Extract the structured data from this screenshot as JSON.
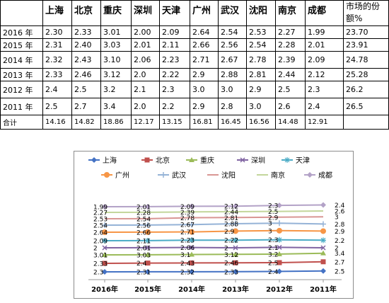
{
  "table": {
    "headers": [
      "",
      "上海",
      "北京",
      "重庆",
      "深圳",
      "天津",
      "广州",
      "武汉",
      "沈阳",
      "南京",
      "成都",
      "市场的份额%"
    ],
    "rows": [
      [
        "2016 年",
        "2.30",
        "2.33",
        "3.01",
        "2.00",
        "2.09",
        "2.64",
        "2.54",
        "2.53",
        "2.27",
        "1.99",
        "23.70"
      ],
      [
        "2015 年",
        "2.31",
        "2.40",
        "3.03",
        "2.01",
        "2.11",
        "2.66",
        "2.56",
        "2.54",
        "2.28",
        "2.01",
        "23.91"
      ],
      [
        "2014 年",
        "2.32",
        "2.43",
        "3.10",
        "2.06",
        "2.23",
        "2.71",
        "2.67",
        "2.78",
        "2.39",
        "2.09",
        "24.78"
      ],
      [
        "2013 年",
        "2.33",
        "2.46",
        "3.12",
        "2.0",
        "2.22",
        "2.9",
        "2.88",
        "2.81",
        "2.44",
        "2.12",
        "25.28"
      ],
      [
        "2012 年",
        "2.4",
        "2.5",
        "3.2",
        "2.1",
        "2.3",
        "3.0",
        "3.0",
        "2.9",
        "2.5",
        "2.3",
        "26.2"
      ],
      [
        "2011 年",
        "2.5",
        "2.7",
        "3.4",
        "2.0",
        "2.2",
        "2.9",
        "2.8",
        "3.0",
        "2.6",
        "2.4",
        "26.5"
      ],
      [
        "合计",
        "14.16",
        "14.82",
        "18.86",
        "12.17",
        "13.15",
        "16.81",
        "16.45",
        "16.56",
        "14.48",
        "12.91",
        ""
      ]
    ]
  },
  "chart_data": {
    "type": "line",
    "categories": [
      "2016年",
      "2015年",
      "2014年",
      "2013年",
      "2012年",
      "2011年"
    ],
    "series": [
      {
        "name": "上海",
        "color": "#4472c4",
        "marker": "diamond",
        "values": [
          2.3,
          2.31,
          2.32,
          2.33,
          2.4,
          2.5
        ],
        "labels": [
          "2.3",
          "2.31",
          "2.32",
          "2.33",
          "2.4",
          "2.5"
        ]
      },
      {
        "name": "北京",
        "color": "#c0504d",
        "marker": "square",
        "values": [
          2.33,
          2.4,
          2.43,
          2.46,
          2.5,
          2.7
        ],
        "labels": [
          "2.33",
          "2.4",
          "2.43",
          "2.46",
          "2.5",
          "2.7"
        ]
      },
      {
        "name": "重庆",
        "color": "#9bbb59",
        "marker": "triangle",
        "values": [
          3.01,
          3.03,
          3.1,
          3.12,
          3.2,
          3.4
        ],
        "labels": [
          "3.01",
          "3.03",
          "3.1",
          "3.12",
          "3.2",
          "3.4"
        ]
      },
      {
        "name": "深圳",
        "color": "#8064a2",
        "marker": "x",
        "values": [
          2,
          2.01,
          2.06,
          2,
          2.1,
          2
        ],
        "labels": [
          "2",
          "2.01",
          "2.06",
          "2",
          "2.1",
          "2"
        ]
      },
      {
        "name": "天津",
        "color": "#4bacc6",
        "marker": "star",
        "values": [
          2.09,
          2.11,
          2.23,
          2.22,
          2.3,
          2.2
        ],
        "labels": [
          "2.09",
          "2.11",
          "2.23",
          "2.22",
          "2.3",
          "2.2"
        ]
      },
      {
        "name": "广州",
        "color": "#f79646",
        "marker": "circle",
        "values": [
          2.64,
          2.66,
          2.71,
          2.9,
          3,
          2.9
        ],
        "labels": [
          "2.64",
          "2.66",
          "2.71",
          "2.9",
          "3",
          "2.9"
        ]
      },
      {
        "name": "武汉",
        "color": "#95b3d7",
        "marker": "plus",
        "values": [
          2.54,
          2.56,
          2.67,
          2.88,
          3,
          2.8
        ],
        "labels": [
          "2.54",
          "2.56",
          "2.67",
          "2.88",
          "3",
          "2.8"
        ]
      },
      {
        "name": "沈阳",
        "color": "#d99694",
        "marker": "none",
        "values": [
          2.53,
          2.54,
          2.78,
          2.81,
          2.9,
          3
        ],
        "labels": [
          "2.53",
          "2.54",
          "2.78",
          "2.81",
          "2.9",
          "3"
        ]
      },
      {
        "name": "南京",
        "color": "#c3d69b",
        "marker": "none",
        "values": [
          2.27,
          2.28,
          2.39,
          2.44,
          2.5,
          2.6
        ],
        "labels": [
          "2.27",
          "2.28",
          "2.39",
          "2.44",
          "2.5",
          "2.6"
        ]
      },
      {
        "name": "成都",
        "color": "#b3a2c7",
        "marker": "diamond",
        "values": [
          1.99,
          2.01,
          2.09,
          2.12,
          2.3,
          2.4
        ],
        "labels": [
          "1.99",
          "2.01",
          "2.09",
          "2.12",
          "2.3",
          "2.4"
        ]
      }
    ],
    "legend": "top",
    "grid": false
  }
}
